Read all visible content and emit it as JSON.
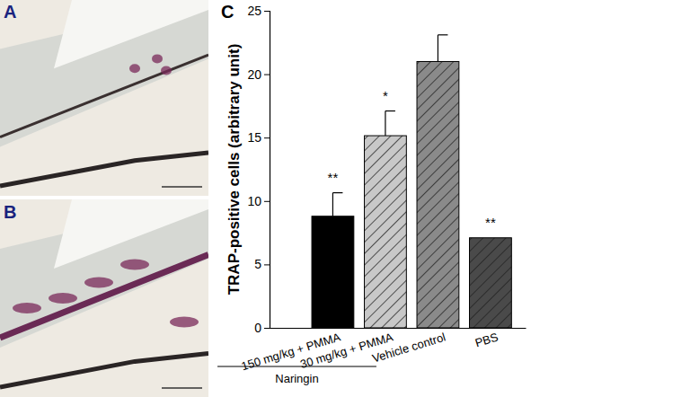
{
  "panel_labels": [
    "A",
    "B",
    "C"
  ],
  "chart_data": {
    "type": "bar",
    "y_label": "TRAP-positive cells (arbitrary unit)",
    "categories": [
      "150 mg/kg + PMMA",
      "30 mg/kg + PMMA",
      "Vehicle control",
      "PBS"
    ],
    "values": [
      8.8,
      15.15,
      21.0,
      7.1
    ],
    "error": [
      1.85,
      1.95,
      2.1,
      null
    ],
    "significance": [
      "**",
      "*",
      null,
      "**"
    ],
    "colors": [
      "#000000",
      "#c8c8c8",
      "#8a8a8a",
      "#4a4a4a"
    ],
    "groups": [
      {
        "label": "Naringin",
        "categories": [
          0,
          1
        ]
      }
    ],
    "ylim": [
      0,
      25
    ],
    "yticks": [
      0,
      5,
      10,
      15,
      20,
      25
    ],
    "grid": false
  }
}
